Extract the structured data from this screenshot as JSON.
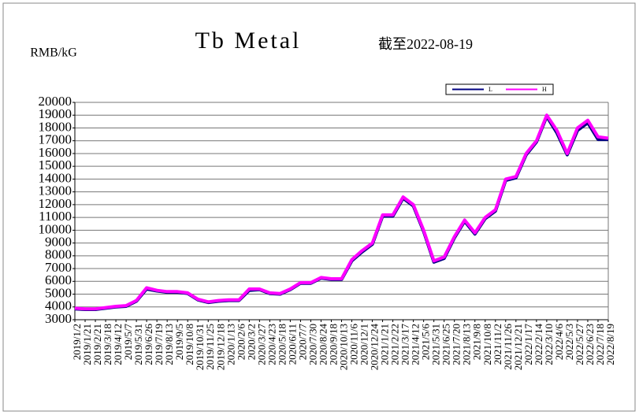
{
  "chart_data": {
    "type": "line",
    "title": "Tb Metal",
    "subtitle": "截至2022-08-19",
    "y_label": "RMB/kG",
    "categories": [
      "2019/1/2",
      "2019/1/21",
      "2019/2/21",
      "2019/3/18",
      "2019/4/12",
      "2019/5/7",
      "2019/5/31",
      "2019/6/26",
      "2019/7/19",
      "2019/8/13",
      "2019/9/5",
      "2019/10/8",
      "2019/10/31",
      "2019/11/25",
      "2019/12/18",
      "2020/1/13",
      "2020/2/6",
      "2020/3/2",
      "2020/3/27",
      "2020/4/23",
      "2020/5/18",
      "2020/6/11",
      "2020/7/7",
      "2020/7/30",
      "2020/8/24",
      "2020/9/18",
      "2020/10/13",
      "2020/11/6",
      "2020/12/1",
      "2020/12/24",
      "2021/1/21",
      "2021/2/22",
      "2021/3/17",
      "2021/4/12",
      "2021/5/6",
      "2021/5/31",
      "2021/6/25",
      "2021/7/20",
      "2021/8/13",
      "2021/9/8",
      "2021/10/8",
      "2021/11/2",
      "2021/11/26",
      "2021/12/21",
      "2022/1/17",
      "2022/2/14",
      "2022/3/10",
      "2022/4/6",
      "2022/5/3",
      "2022/5/27",
      "2022/6/23",
      "2022/7/18",
      "2022/8/19"
    ],
    "series": [
      {
        "name": "L",
        "color": "#000080",
        "values": [
          3850,
          3800,
          3800,
          3900,
          4000,
          4050,
          4450,
          5400,
          5250,
          5150,
          5150,
          5050,
          4550,
          4350,
          4450,
          4500,
          4500,
          5300,
          5350,
          5050,
          5000,
          5350,
          5850,
          5850,
          6250,
          6150,
          6150,
          7600,
          8300,
          8900,
          11100,
          11100,
          12500,
          11900,
          9900,
          7500,
          7800,
          9400,
          10700,
          9700,
          10900,
          11500,
          13900,
          14100,
          15900,
          16900,
          18900,
          17600,
          15900,
          17800,
          18400,
          17100,
          17100
        ]
      },
      {
        "name": "H",
        "color": "#ff00ff",
        "values": [
          3900,
          3850,
          3850,
          3950,
          4050,
          4100,
          4500,
          5500,
          5300,
          5200,
          5200,
          5100,
          4600,
          4400,
          4500,
          4550,
          4550,
          5400,
          5400,
          5100,
          5050,
          5400,
          5900,
          5900,
          6300,
          6200,
          6200,
          7700,
          8400,
          9000,
          11200,
          11200,
          12600,
          12000,
          10000,
          7600,
          7900,
          9500,
          10800,
          9800,
          11000,
          11600,
          14000,
          14200,
          16000,
          17000,
          19000,
          17800,
          16000,
          18000,
          18600,
          17300,
          17200
        ]
      }
    ],
    "ylim": [
      3000,
      20000
    ],
    "yticks": [
      3000,
      4000,
      5000,
      6000,
      7000,
      8000,
      9000,
      10000,
      11000,
      12000,
      13000,
      14000,
      15000,
      16000,
      17000,
      18000,
      19000,
      20000
    ],
    "grid": true
  }
}
